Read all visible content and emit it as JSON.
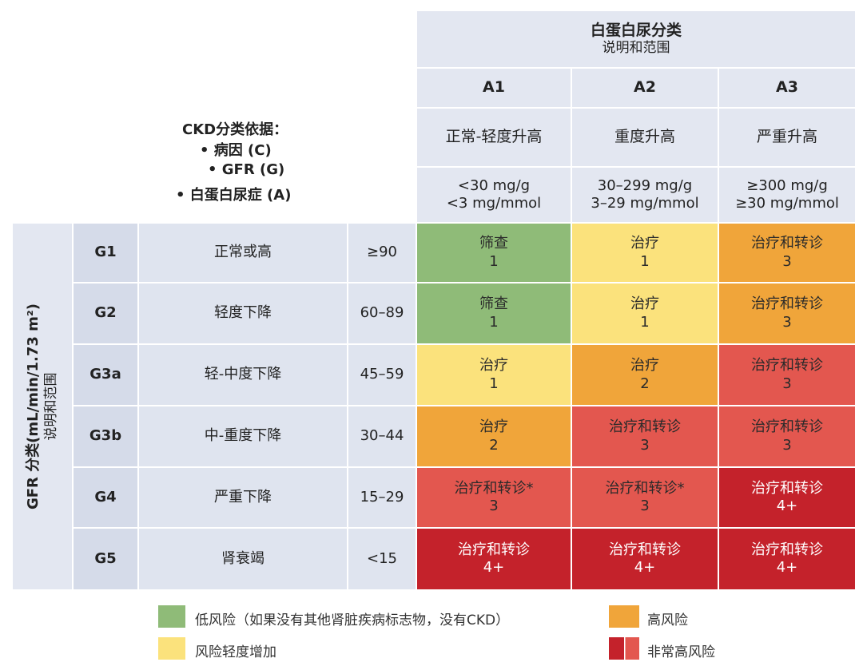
{
  "header": {
    "title": "白蛋白尿分类",
    "subtitle": "说明和范围",
    "basis_title": "CKD分类依据：",
    "basis_items": [
      "• 病因 (C)",
      "• GFR (G)",
      "• 白蛋白尿症 (A)"
    ],
    "columns": [
      {
        "code": "A1",
        "desc": "正常-轻度升高",
        "range1": "<30 mg/g",
        "range2": "<3 mg/mmol"
      },
      {
        "code": "A2",
        "desc": "重度升高",
        "range1": "30–299 mg/g",
        "range2": "3–29 mg/mmol"
      },
      {
        "code": "A3",
        "desc": "严重升高",
        "range1": "≥300 mg/g",
        "range2": "≥30 mg/mmol"
      }
    ]
  },
  "side_label": {
    "line1": "GFR 分类(mL/min/1.73 m²)",
    "line2": "说明和范围"
  },
  "rows": [
    {
      "grade": "G1",
      "desc": "正常或高",
      "range": "≥90",
      "cells": [
        {
          "action": "筛查",
          "level": "1",
          "risk": "green"
        },
        {
          "action": "治疗",
          "level": "1",
          "risk": "yellow"
        },
        {
          "action": "治疗和转诊",
          "level": "3",
          "risk": "orange"
        }
      ]
    },
    {
      "grade": "G2",
      "desc": "轻度下降",
      "range": "60–89",
      "cells": [
        {
          "action": "筛查",
          "level": "1",
          "risk": "green"
        },
        {
          "action": "治疗",
          "level": "1",
          "risk": "yellow"
        },
        {
          "action": "治疗和转诊",
          "level": "3",
          "risk": "orange"
        }
      ]
    },
    {
      "grade": "G3a",
      "desc": "轻-中度下降",
      "range": "45–59",
      "cells": [
        {
          "action": "治疗",
          "level": "1",
          "risk": "yellow"
        },
        {
          "action": "治疗",
          "level": "2",
          "risk": "orange"
        },
        {
          "action": "治疗和转诊",
          "level": "3",
          "risk": "red"
        }
      ]
    },
    {
      "grade": "G3b",
      "desc": "中-重度下降",
      "range": "30–44",
      "cells": [
        {
          "action": "治疗",
          "level": "2",
          "risk": "orange"
        },
        {
          "action": "治疗和转诊",
          "level": "3",
          "risk": "red"
        },
        {
          "action": "治疗和转诊",
          "level": "3",
          "risk": "red"
        }
      ]
    },
    {
      "grade": "G4",
      "desc": "严重下降",
      "range": "15–29",
      "cells": [
        {
          "action": "治疗和转诊*",
          "level": "3",
          "risk": "red"
        },
        {
          "action": "治疗和转诊*",
          "level": "3",
          "risk": "red"
        },
        {
          "action": "治疗和转诊",
          "level": "4+",
          "risk": "dred"
        }
      ]
    },
    {
      "grade": "G5",
      "desc": "肾衰竭",
      "range": "<15",
      "cells": [
        {
          "action": "治疗和转诊",
          "level": "4+",
          "risk": "dred"
        },
        {
          "action": "治疗和转诊",
          "level": "4+",
          "risk": "dred"
        },
        {
          "action": "治疗和转诊",
          "level": "4+",
          "risk": "dred"
        }
      ]
    }
  ],
  "legend": [
    {
      "label": "低风险（如果没有其他肾脏疾病标志物，没有CKD）",
      "color": "#8fbb78"
    },
    {
      "label": "风险轻度增加",
      "color": "#fbe27c"
    },
    {
      "label": "高风险",
      "color": "#f0a53a"
    },
    {
      "label": "非常高风险",
      "color": "#e3574f",
      "color2": "#c4222b"
    }
  ]
}
